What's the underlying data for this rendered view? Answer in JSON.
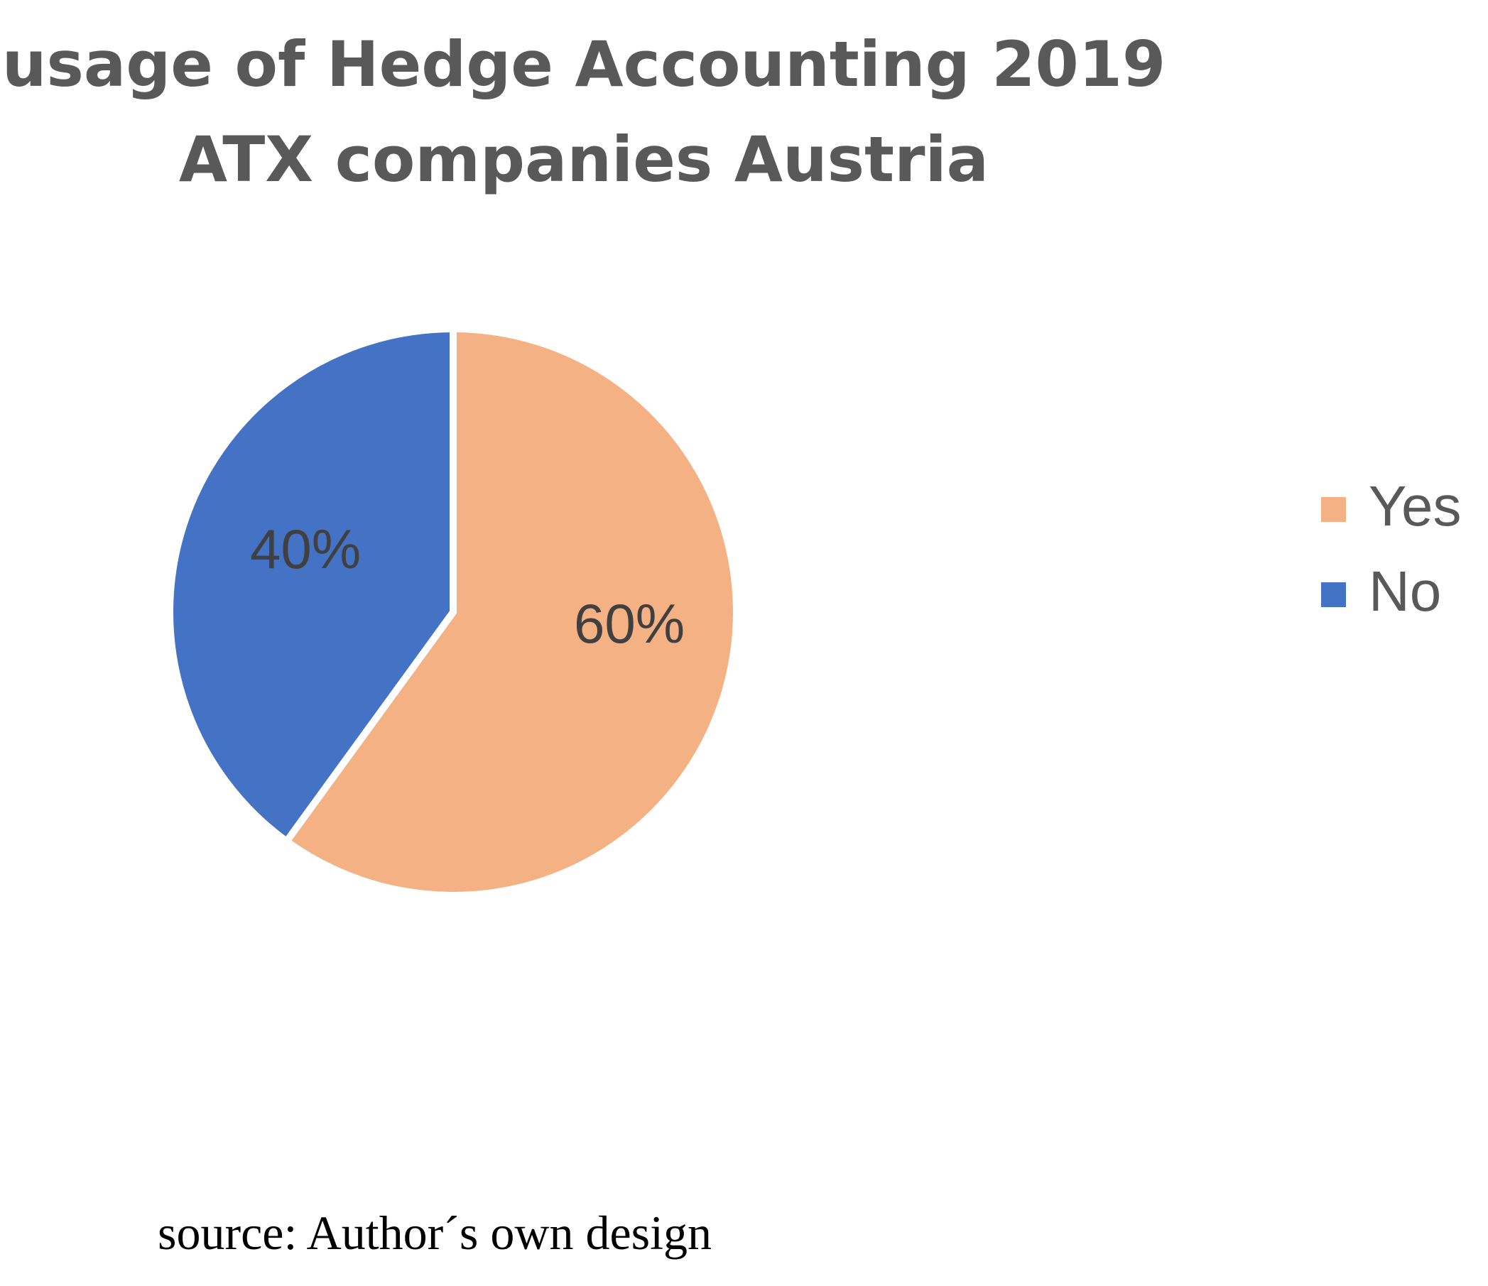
{
  "chart_data": {
    "type": "pie",
    "title_lines": [
      "usage of Hedge Accounting 2019",
      "ATX companies Austria"
    ],
    "categories": [
      "Yes",
      "No"
    ],
    "values": [
      60,
      40
    ],
    "data_labels": [
      "60%",
      "40%"
    ],
    "colors": [
      "#F4B183",
      "#4472C4"
    ],
    "legend_position": "right",
    "start_angle_deg": 0,
    "direction": "clockwise"
  },
  "source": "source: Author´s own design"
}
